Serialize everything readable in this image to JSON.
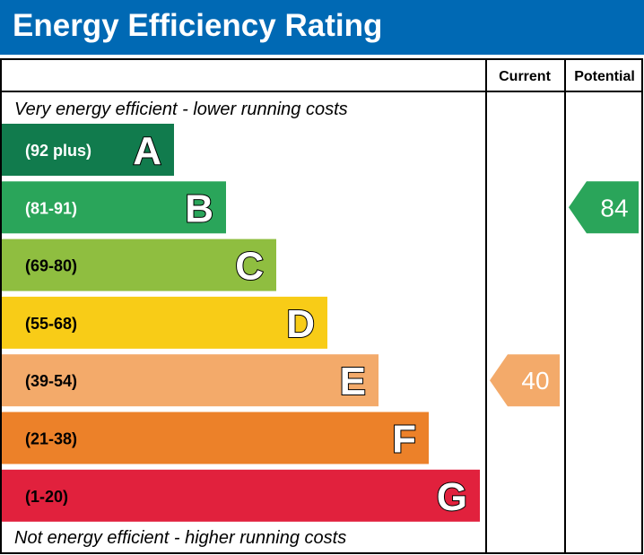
{
  "title": "Energy Efficiency Rating",
  "columns": {
    "current": "Current",
    "potential": "Potential"
  },
  "top_note": "Very energy efficient - lower running costs",
  "bottom_note": "Not energy efficient - higher running costs",
  "chart_data": {
    "type": "bar",
    "bands": [
      {
        "letter": "A",
        "range": "(92 plus)",
        "color": "#117b4d",
        "text_color": "#ffffff"
      },
      {
        "letter": "B",
        "range": "(81-91)",
        "color": "#2aa55a",
        "text_color": "#ffffff"
      },
      {
        "letter": "C",
        "range": "(69-80)",
        "color": "#8fbe40",
        "text_color": "#000000"
      },
      {
        "letter": "D",
        "range": "(55-68)",
        "color": "#f8cc17",
        "text_color": "#000000"
      },
      {
        "letter": "E",
        "range": "(39-54)",
        "color": "#f3aa6a",
        "text_color": "#000000"
      },
      {
        "letter": "F",
        "range": "(21-38)",
        "color": "#ec8129",
        "text_color": "#000000"
      },
      {
        "letter": "G",
        "range": "(1-20)",
        "color": "#e1213d",
        "text_color": "#000000"
      }
    ],
    "current": {
      "value": 40,
      "band": "E",
      "color": "#f3aa6a"
    },
    "potential": {
      "value": 84,
      "band": "B",
      "color": "#2aa55a"
    }
  }
}
